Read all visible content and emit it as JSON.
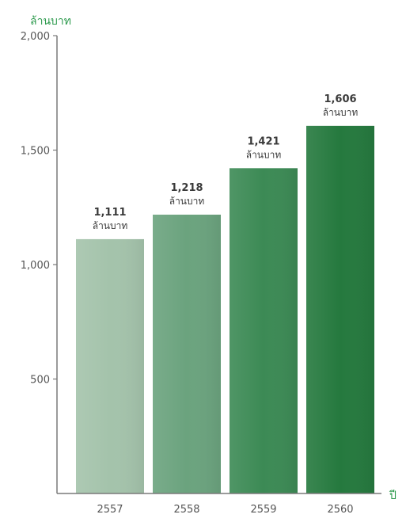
{
  "chart_data": {
    "type": "bar",
    "categories": [
      "2557",
      "2558",
      "2559",
      "2560"
    ],
    "values": [
      1111,
      1218,
      1421,
      1606
    ],
    "value_labels": [
      "1,111",
      "1,218",
      "1,421",
      "1,606"
    ],
    "value_unit": "ล้านบาท",
    "title": "",
    "ylabel": "ล้านบาท",
    "xlabel": "ปี",
    "ylim": [
      0,
      2000
    ],
    "yticks": [
      500,
      1000,
      1500,
      2000
    ],
    "ytick_labels": [
      "500",
      "1,000",
      "1,500",
      "2,000"
    ],
    "grid": false,
    "legend": "none",
    "bar_colors": [
      "#a4c3ab",
      "#6ba37e",
      "#3c8a55",
      "#25793e"
    ],
    "axis_label_color": "#2e9a4e"
  }
}
